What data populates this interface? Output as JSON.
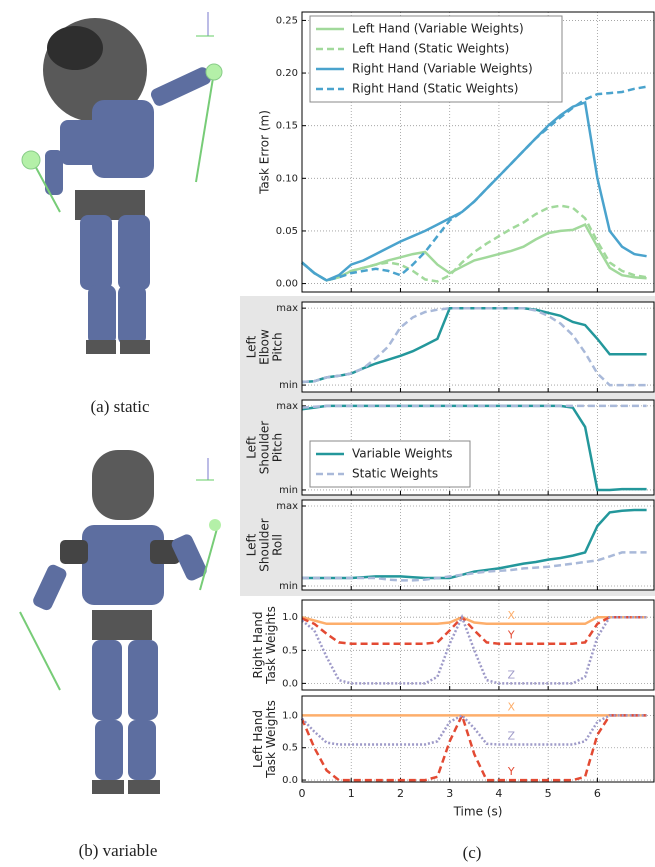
{
  "captions": {
    "a": "(a) static",
    "b": "(b) variable",
    "c": "(c)"
  },
  "chart_data": [
    {
      "type": "line",
      "ylabel": [
        "Task Error (m)"
      ],
      "legend": "upper left",
      "grid": true,
      "x": [
        0,
        0.25,
        0.5,
        0.75,
        1,
        1.25,
        1.5,
        1.75,
        2,
        2.25,
        2.5,
        2.75,
        3,
        3.25,
        3.5,
        3.75,
        4,
        4.25,
        4.5,
        4.75,
        5,
        5.25,
        5.5,
        5.75,
        6,
        6.25,
        6.5,
        6.75,
        7
      ],
      "xlim": [
        0,
        7.15
      ],
      "xticks": [
        0,
        1,
        2,
        3,
        4,
        5,
        6
      ],
      "ylim": [
        -0.008,
        0.258
      ],
      "yticks": [
        {
          "value": 0,
          "label": "0.00"
        },
        {
          "value": 0.05,
          "label": "0.05"
        },
        {
          "value": 0.1,
          "label": "0.10"
        },
        {
          "value": 0.15,
          "label": "0.15"
        },
        {
          "value": 0.2,
          "label": "0.20"
        },
        {
          "value": 0.25,
          "label": "0.25"
        }
      ],
      "series": [
        {
          "name": "Left Hand (Variable Weights)",
          "color": "#a1d99b",
          "style": "solid",
          "values": [
            0.02,
            0.01,
            0.003,
            0.006,
            0.012,
            0.015,
            0.018,
            0.022,
            0.025,
            0.028,
            0.03,
            0.018,
            0.01,
            0.016,
            0.022,
            0.025,
            0.028,
            0.031,
            0.035,
            0.042,
            0.048,
            0.05,
            0.051,
            0.056,
            0.035,
            0.015,
            0.008,
            0.006,
            0.005
          ]
        },
        {
          "name": "Left Hand (Static Weights)",
          "color": "#a1d99b",
          "style": "dashed",
          "values": [
            0.02,
            0.01,
            0.003,
            0.006,
            0.012,
            0.015,
            0.018,
            0.02,
            0.018,
            0.012,
            0.004,
            0.002,
            0.008,
            0.02,
            0.03,
            0.038,
            0.045,
            0.052,
            0.058,
            0.066,
            0.072,
            0.074,
            0.072,
            0.062,
            0.04,
            0.02,
            0.012,
            0.008,
            0.006
          ]
        },
        {
          "name": "Right Hand (Variable Weights)",
          "color": "#4aa3cd",
          "style": "solid",
          "values": [
            0.02,
            0.01,
            0.003,
            0.008,
            0.018,
            0.022,
            0.028,
            0.034,
            0.04,
            0.045,
            0.05,
            0.056,
            0.062,
            0.068,
            0.078,
            0.09,
            0.102,
            0.114,
            0.126,
            0.138,
            0.15,
            0.16,
            0.168,
            0.172,
            0.1,
            0.05,
            0.035,
            0.028,
            0.026
          ]
        },
        {
          "name": "Right Hand (Static Weights)",
          "color": "#4aa3cd",
          "style": "dashed",
          "values": [
            0.02,
            0.01,
            0.003,
            0.006,
            0.01,
            0.012,
            0.014,
            0.012,
            0.008,
            0.018,
            0.03,
            0.045,
            0.06,
            0.068,
            0.078,
            0.09,
            0.102,
            0.114,
            0.126,
            0.138,
            0.148,
            0.158,
            0.167,
            0.175,
            0.18,
            0.181,
            0.182,
            0.185,
            0.187
          ]
        }
      ]
    },
    {
      "type": "line",
      "ylabel": [
        "Left",
        "Elbow",
        "Pitch"
      ],
      "grid": true,
      "x": [
        0,
        0.25,
        0.5,
        0.75,
        1,
        1.25,
        1.5,
        1.75,
        2,
        2.25,
        2.5,
        2.75,
        3,
        3.25,
        3.5,
        3.75,
        4,
        4.25,
        4.5,
        4.75,
        5,
        5.25,
        5.5,
        5.75,
        6,
        6.25,
        6.5,
        6.75,
        7
      ],
      "xlim": [
        0,
        7.15
      ],
      "xticks": [
        0,
        1,
        2,
        3,
        4,
        5,
        6
      ],
      "ylim": [
        -0.09,
        1.08
      ],
      "yticks": [
        {
          "value": 0,
          "label": "min"
        },
        {
          "value": 1,
          "label": "max"
        }
      ],
      "series": [
        {
          "color": "#23979b",
          "style": "solid",
          "values": [
            0.04,
            0.05,
            0.1,
            0.12,
            0.15,
            0.22,
            0.28,
            0.33,
            0.38,
            0.44,
            0.52,
            0.6,
            1,
            1,
            1,
            1,
            1,
            1,
            1,
            0.98,
            0.94,
            0.9,
            0.82,
            0.78,
            0.6,
            0.4,
            0.4,
            0.4,
            0.4
          ]
        },
        {
          "color": "#a9b9d9",
          "style": "dashed",
          "values": [
            0.04,
            0.05,
            0.1,
            0.12,
            0.15,
            0.22,
            0.35,
            0.5,
            0.75,
            0.88,
            0.95,
            0.98,
            1,
            1,
            1,
            1,
            1,
            1,
            1,
            0.97,
            0.9,
            0.8,
            0.65,
            0.42,
            0.15,
            0,
            0,
            0,
            0
          ]
        }
      ]
    },
    {
      "type": "line",
      "ylabel": [
        "Left",
        "Shoulder",
        "Pitch"
      ],
      "legend": "lower left",
      "grid": true,
      "x": [
        0,
        0.25,
        0.5,
        0.75,
        1,
        1.25,
        1.5,
        1.75,
        2,
        2.25,
        2.5,
        2.75,
        3,
        3.25,
        3.5,
        3.75,
        4,
        4.25,
        4.5,
        4.75,
        5,
        5.25,
        5.5,
        5.75,
        6,
        6.25,
        6.5,
        6.75,
        7
      ],
      "xlim": [
        0,
        7.15
      ],
      "xticks": [
        0,
        1,
        2,
        3,
        4,
        5,
        6
      ],
      "ylim": [
        -0.06,
        1.07
      ],
      "yticks": [
        {
          "value": 0,
          "label": "min"
        },
        {
          "value": 1,
          "label": "max"
        }
      ],
      "series": [
        {
          "name": "Variable Weights",
          "color": "#23979b",
          "style": "solid",
          "values": [
            0.96,
            0.98,
            1,
            1,
            1,
            1,
            1,
            1,
            1,
            1,
            1,
            1,
            1,
            1,
            1,
            1,
            1,
            1,
            1,
            1,
            1,
            1,
            0.98,
            0.75,
            0,
            0,
            0.01,
            0.01,
            0.01
          ]
        },
        {
          "name": "Static Weights",
          "color": "#a9b9d9",
          "style": "dashed",
          "values": [
            0.98,
            0.99,
            1,
            1,
            1,
            1,
            1,
            1,
            1,
            1,
            1,
            1,
            1,
            1,
            1,
            1,
            1,
            1,
            1,
            1,
            1,
            1,
            1,
            1,
            1,
            1,
            1,
            1,
            1
          ]
        }
      ]
    },
    {
      "type": "line",
      "ylabel": [
        "Left",
        "Shoulder",
        "Roll"
      ],
      "grid": true,
      "x": [
        0,
        0.25,
        0.5,
        0.75,
        1,
        1.25,
        1.5,
        1.75,
        2,
        2.25,
        2.5,
        2.75,
        3,
        3.25,
        3.5,
        3.75,
        4,
        4.25,
        4.5,
        4.75,
        5,
        5.25,
        5.5,
        5.75,
        6,
        6.25,
        6.5,
        6.75,
        7
      ],
      "xlim": [
        0,
        7.15
      ],
      "xticks": [
        0,
        1,
        2,
        3,
        4,
        5,
        6
      ],
      "ylim": [
        -0.05,
        1.075
      ],
      "yticks": [
        {
          "value": 0,
          "label": "min"
        },
        {
          "value": 1,
          "label": "max"
        }
      ],
      "series": [
        {
          "color": "#23979b",
          "style": "solid",
          "values": [
            0.1,
            0.1,
            0.1,
            0.1,
            0.1,
            0.11,
            0.12,
            0.12,
            0.12,
            0.11,
            0.1,
            0.1,
            0.1,
            0.14,
            0.18,
            0.2,
            0.22,
            0.25,
            0.28,
            0.3,
            0.33,
            0.35,
            0.38,
            0.42,
            0.75,
            0.92,
            0.94,
            0.95,
            0.95
          ]
        },
        {
          "color": "#a9b9d9",
          "style": "dashed",
          "values": [
            0.1,
            0.1,
            0.1,
            0.1,
            0.1,
            0.1,
            0.1,
            0.08,
            0.07,
            0.07,
            0.08,
            0.1,
            0.12,
            0.14,
            0.16,
            0.18,
            0.19,
            0.2,
            0.22,
            0.23,
            0.24,
            0.26,
            0.28,
            0.3,
            0.32,
            0.37,
            0.42,
            0.42,
            0.42
          ]
        }
      ]
    },
    {
      "type": "line",
      "ylabel": [
        "Right Hand",
        "Task Weights"
      ],
      "series_labels": true,
      "grid": true,
      "x": [
        0,
        0.25,
        0.5,
        0.75,
        1,
        1.25,
        1.5,
        1.75,
        2,
        2.25,
        2.5,
        2.75,
        3,
        3.25,
        3.5,
        3.75,
        4,
        4.25,
        4.5,
        4.75,
        5,
        5.25,
        5.5,
        5.75,
        6,
        6.25,
        6.5,
        6.75,
        7
      ],
      "xlim": [
        0,
        7.15
      ],
      "xticks": [
        0,
        1,
        2,
        3,
        4,
        5,
        6
      ],
      "ylim": [
        -0.1,
        1.26
      ],
      "yticks": [
        {
          "value": 0,
          "label": "0.0"
        },
        {
          "value": 0.5,
          "label": "0.5"
        },
        {
          "value": 1,
          "label": "1.0"
        }
      ],
      "series": [
        {
          "name": "X",
          "color": "#fdae6b",
          "style": "solid",
          "values": [
            1,
            0.95,
            0.9,
            0.9,
            0.9,
            0.9,
            0.9,
            0.9,
            0.9,
            0.9,
            0.9,
            0.9,
            0.92,
            1,
            0.92,
            0.9,
            0.9,
            0.9,
            0.9,
            0.9,
            0.9,
            0.9,
            0.9,
            0.9,
            1,
            1,
            1,
            1,
            1
          ]
        },
        {
          "name": "Y",
          "color": "#e34a33",
          "style": "dashed",
          "values": [
            0.98,
            0.9,
            0.75,
            0.62,
            0.6,
            0.6,
            0.6,
            0.6,
            0.6,
            0.6,
            0.6,
            0.62,
            0.8,
            1,
            0.8,
            0.62,
            0.6,
            0.6,
            0.6,
            0.6,
            0.6,
            0.6,
            0.6,
            0.62,
            0.9,
            1,
            1,
            1,
            1
          ]
        },
        {
          "name": "Z",
          "color": "#9e9ac8",
          "style": "dotted",
          "values": [
            0.95,
            0.8,
            0.4,
            0.05,
            0,
            0,
            0,
            0,
            0,
            0,
            0,
            0.1,
            0.6,
            1,
            0.5,
            0.05,
            0,
            0,
            0,
            0,
            0,
            0,
            0,
            0.1,
            0.7,
            1,
            1,
            1,
            1
          ]
        }
      ]
    },
    {
      "type": "line",
      "ylabel": [
        "Left Hand",
        "Task Weights"
      ],
      "series_labels": true,
      "grid": true,
      "xlabel": "Time (s)",
      "show_xtick_labels": true,
      "x": [
        0,
        0.25,
        0.5,
        0.75,
        1,
        1.25,
        1.5,
        1.75,
        2,
        2.25,
        2.5,
        2.75,
        3,
        3.25,
        3.5,
        3.75,
        4,
        4.25,
        4.5,
        4.75,
        5,
        5.25,
        5.5,
        5.75,
        6,
        6.25,
        6.5,
        6.75,
        7
      ],
      "xlim": [
        0,
        7.15
      ],
      "xticks": [
        0,
        1,
        2,
        3,
        4,
        5,
        6
      ],
      "ylim": [
        -0.03,
        1.3
      ],
      "yticks": [
        {
          "value": 0,
          "label": "0.0"
        },
        {
          "value": 0.5,
          "label": "0.5"
        },
        {
          "value": 1,
          "label": "1.0"
        }
      ],
      "series": [
        {
          "name": "X",
          "color": "#fdae6b",
          "style": "solid",
          "values": [
            1,
            1,
            1,
            1,
            1,
            1,
            1,
            1,
            1,
            1,
            1,
            1,
            1,
            1,
            1,
            1,
            1,
            1,
            1,
            1,
            1,
            1,
            1,
            1,
            1,
            1,
            1,
            1,
            1
          ]
        },
        {
          "name": "Y",
          "color": "#e34a33",
          "style": "dashed",
          "values": [
            0.95,
            0.5,
            0.15,
            0,
            0,
            0,
            0,
            0,
            0,
            0,
            0,
            0.05,
            0.6,
            1,
            0.4,
            0,
            0,
            0,
            0,
            0,
            0,
            0,
            0,
            0.05,
            0.7,
            1,
            1,
            1,
            1
          ]
        },
        {
          "name": "Z",
          "color": "#9e9ac8",
          "style": "dotted",
          "values": [
            0.95,
            0.75,
            0.58,
            0.55,
            0.55,
            0.55,
            0.55,
            0.55,
            0.55,
            0.55,
            0.55,
            0.6,
            0.9,
            1,
            0.8,
            0.56,
            0.55,
            0.55,
            0.55,
            0.55,
            0.55,
            0.55,
            0.55,
            0.6,
            0.9,
            1,
            1,
            1,
            1
          ]
        }
      ]
    }
  ]
}
